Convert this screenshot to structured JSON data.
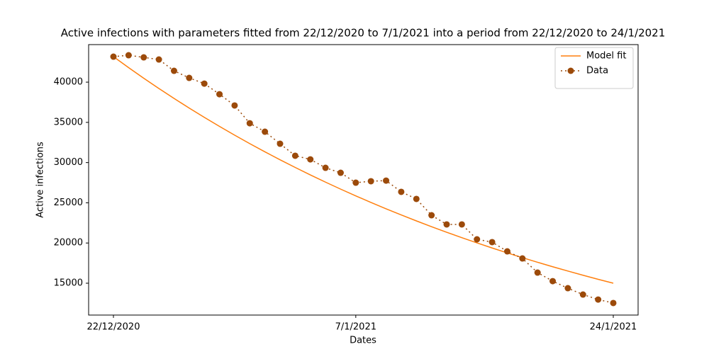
{
  "chart_data": {
    "type": "line",
    "title": "Active infections with parameters fitted from 22/12/2020 to 7/1/2021 into a period from 22/12/2020 to 24/1/2021",
    "x_label": "Dates",
    "y_label": "Active infections",
    "categories": [
      "22/12/2020",
      null,
      null,
      null,
      null,
      null,
      null,
      null,
      null,
      null,
      null,
      null,
      null,
      null,
      null,
      null,
      "7/1/2021",
      null,
      null,
      null,
      null,
      null,
      null,
      null,
      null,
      null,
      null,
      null,
      null,
      null,
      null,
      null,
      null,
      "24/1/2021"
    ],
    "series": [
      {
        "name": "Model fit",
        "color": "#ff7f0e",
        "linestyle": "solid",
        "values": [
          43170,
          41809,
          40491,
          39215,
          37979,
          36781,
          35622,
          34499,
          33412,
          32358,
          31338,
          30350,
          29394,
          28467,
          27569,
          26700,
          25859,
          25043,
          24254,
          23489,
          22749,
          22032,
          21337,
          20665,
          20013,
          19382,
          18771,
          18179,
          17606,
          17051,
          16514,
          15993,
          15489,
          15001
        ]
      },
      {
        "name": "Data",
        "color": "#9c4a0a",
        "linestyle": "dotted",
        "marker": "o",
        "values": [
          43170,
          43345,
          43080,
          42820,
          41410,
          40530,
          39820,
          38500,
          37100,
          34890,
          33840,
          32340,
          30850,
          30400,
          29350,
          28730,
          27500,
          27680,
          27760,
          26360,
          25480,
          23450,
          22310,
          22310,
          20460,
          20110,
          18960,
          18080,
          16320,
          15260,
          14380,
          13590,
          12970,
          12540
        ]
      }
    ],
    "ylim": [
      11040,
      44670
    ],
    "yticks": [
      15000,
      20000,
      25000,
      30000,
      35000,
      40000
    ],
    "grid": false,
    "legend": "upper right"
  }
}
